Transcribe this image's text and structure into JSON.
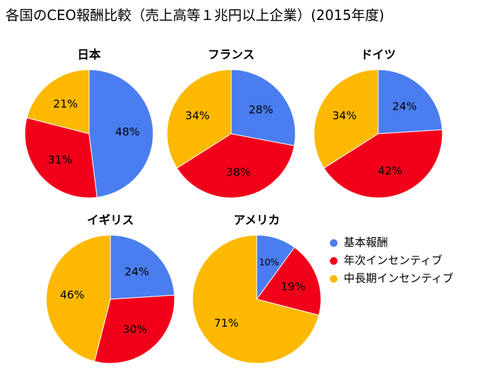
{
  "title": "各国のCEO報酬比較（売上高等１兆円以上企業）(2015年度)",
  "colors": {
    "基本報酬": "#4a7ef0",
    "年次インセンティブ": "#f2001a",
    "中長期インセンティブ": "#fcb900"
  },
  "legend": [
    "基本報酬",
    "年次インセンティブ",
    "中長期インセンティブ"
  ],
  "chart_data": [
    {
      "type": "pie",
      "title": "日本",
      "categories": [
        "基本報酬",
        "年次インセンティブ",
        "中長期インセンティブ"
      ],
      "values": [
        48,
        31,
        21
      ],
      "labels": [
        "48%",
        "31%",
        "21%"
      ]
    },
    {
      "type": "pie",
      "title": "フランス",
      "categories": [
        "基本報酬",
        "年次インセンティブ",
        "中長期インセンティブ"
      ],
      "values": [
        28,
        38,
        34
      ],
      "labels": [
        "28%",
        "38%",
        "34%"
      ]
    },
    {
      "type": "pie",
      "title": "ドイツ",
      "categories": [
        "基本報酬",
        "年次インセンティブ",
        "中長期インセンティブ"
      ],
      "values": [
        24,
        42,
        34
      ],
      "labels": [
        "24%",
        "42%",
        "34%"
      ]
    },
    {
      "type": "pie",
      "title": "イギリス",
      "categories": [
        "基本報酬",
        "年次インセンティブ",
        "中長期インセンティブ"
      ],
      "values": [
        24,
        30,
        46
      ],
      "labels": [
        "24%",
        "30%",
        "46%"
      ]
    },
    {
      "type": "pie",
      "title": "アメリカ",
      "categories": [
        "基本報酬",
        "年次インセンティブ",
        "中長期インセンティブ"
      ],
      "values": [
        10,
        19,
        71
      ],
      "labels": [
        "10%",
        "19%",
        "71%"
      ]
    }
  ]
}
